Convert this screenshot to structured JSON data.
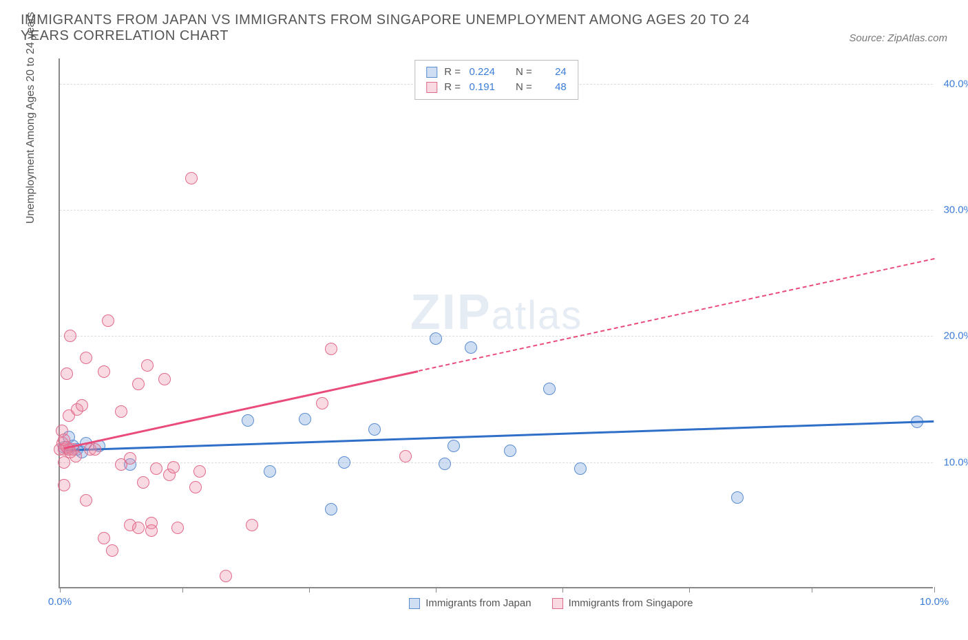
{
  "header": {
    "title": "IMMIGRANTS FROM JAPAN VS IMMIGRANTS FROM SINGAPORE UNEMPLOYMENT AMONG AGES 20 TO 24 YEARS CORRELATION CHART",
    "source_prefix": "Source: ",
    "source_name": "ZipAtlas.com"
  },
  "chart": {
    "type": "scatter",
    "y_axis_title": "Unemployment Among Ages 20 to 24 years",
    "xlim": [
      0,
      10
    ],
    "ylim": [
      0,
      42
    ],
    "x_ticks": [
      0,
      1.4,
      2.85,
      4.3,
      5.75,
      7.2,
      8.6,
      10
    ],
    "x_tick_labels": {
      "0": "0.0%",
      "10": "10.0%"
    },
    "y_ticks": [
      10,
      20,
      30,
      40
    ],
    "y_tick_labels": {
      "10": "10.0%",
      "20": "20.0%",
      "30": "30.0%",
      "40": "40.0%"
    },
    "background_color": "#ffffff",
    "grid_color": "#dddddd",
    "axis_color": "#888888",
    "tick_label_color": "#3b7dd8",
    "watermark": {
      "zip": "ZIP",
      "atlas": "atlas"
    },
    "series": [
      {
        "name": "Immigrants from Japan",
        "fill": "rgba(120,160,220,0.35)",
        "stroke": "#5a8dd0",
        "marker_radius": 9,
        "trend": {
          "x1": 0.05,
          "y1": 11.0,
          "x2": 10.0,
          "y2": 13.3,
          "dash_from_x": null,
          "color": "#2f6fc7"
        },
        "stats": {
          "R": "0.224",
          "N": "24"
        },
        "points": [
          [
            0.05,
            11.2
          ],
          [
            0.1,
            11.0
          ],
          [
            0.1,
            12.0
          ],
          [
            0.15,
            11.3
          ],
          [
            0.2,
            11.0
          ],
          [
            0.25,
            10.8
          ],
          [
            0.8,
            9.8
          ],
          [
            0.45,
            11.3
          ],
          [
            2.15,
            13.3
          ],
          [
            2.4,
            9.3
          ],
          [
            2.8,
            13.4
          ],
          [
            3.25,
            10.0
          ],
          [
            3.1,
            6.3
          ],
          [
            3.6,
            12.6
          ],
          [
            4.3,
            19.8
          ],
          [
            4.7,
            19.1
          ],
          [
            4.5,
            11.3
          ],
          [
            4.4,
            9.9
          ],
          [
            5.6,
            15.8
          ],
          [
            5.15,
            10.9
          ],
          [
            5.95,
            9.5
          ],
          [
            7.75,
            7.2
          ],
          [
            9.8,
            13.2
          ],
          [
            0.3,
            11.5
          ]
        ]
      },
      {
        "name": "Immigrants from Singapore",
        "fill": "rgba(235,140,165,0.32)",
        "stroke": "#e06a8a",
        "marker_radius": 9,
        "trend": {
          "x1": 0.05,
          "y1": 11.2,
          "x2": 10.0,
          "y2": 26.2,
          "dash_from_x": 4.1,
          "color": "#e94b7a"
        },
        "stats": {
          "R": "0.191",
          "N": "48"
        },
        "points": [
          [
            0.0,
            11.0
          ],
          [
            0.02,
            12.5
          ],
          [
            0.03,
            11.5
          ],
          [
            0.05,
            11.0
          ],
          [
            0.05,
            10.0
          ],
          [
            0.08,
            17.0
          ],
          [
            0.1,
            11.0
          ],
          [
            0.1,
            13.7
          ],
          [
            0.12,
            20.0
          ],
          [
            0.15,
            11.0
          ],
          [
            0.18,
            10.5
          ],
          [
            0.05,
            8.2
          ],
          [
            0.2,
            14.2
          ],
          [
            0.25,
            14.5
          ],
          [
            0.3,
            18.3
          ],
          [
            0.3,
            7.0
          ],
          [
            0.35,
            11.0
          ],
          [
            0.4,
            11.0
          ],
          [
            0.5,
            17.2
          ],
          [
            0.5,
            4.0
          ],
          [
            0.55,
            21.2
          ],
          [
            0.6,
            3.0
          ],
          [
            0.7,
            9.8
          ],
          [
            0.7,
            14.0
          ],
          [
            0.8,
            5.0
          ],
          [
            0.8,
            10.3
          ],
          [
            0.9,
            16.2
          ],
          [
            0.9,
            4.8
          ],
          [
            0.95,
            8.4
          ],
          [
            1.0,
            17.7
          ],
          [
            1.05,
            5.2
          ],
          [
            1.05,
            4.6
          ],
          [
            1.1,
            9.5
          ],
          [
            1.2,
            16.6
          ],
          [
            1.25,
            9.0
          ],
          [
            1.3,
            9.6
          ],
          [
            1.35,
            4.8
          ],
          [
            1.5,
            32.5
          ],
          [
            1.55,
            8.0
          ],
          [
            1.6,
            9.3
          ],
          [
            1.9,
            1.0
          ],
          [
            2.2,
            5.0
          ],
          [
            3.0,
            14.7
          ],
          [
            3.1,
            19.0
          ],
          [
            3.95,
            10.5
          ],
          [
            0.05,
            11.8
          ],
          [
            0.08,
            11.2
          ],
          [
            0.12,
            10.8
          ]
        ]
      }
    ],
    "legend_top": {
      "R_label": "R =",
      "N_label": "N ="
    },
    "legend_bottom": [
      {
        "label": "Immigrants from Japan",
        "fill": "rgba(120,160,220,0.35)",
        "stroke": "#5a8dd0"
      },
      {
        "label": "Immigrants from Singapore",
        "fill": "rgba(235,140,165,0.32)",
        "stroke": "#e06a8a"
      }
    ]
  }
}
